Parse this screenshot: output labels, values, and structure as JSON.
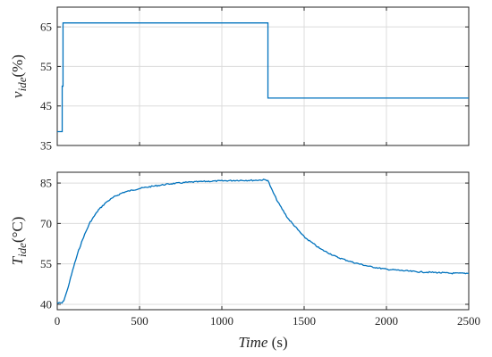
{
  "colors": {
    "series": "#0072BD",
    "axes": "#262626",
    "grid": "#dcdcdc"
  },
  "chart_data": [
    {
      "type": "line",
      "ylabel": {
        "var": "v",
        "sub": "ide",
        "unit": "(%)"
      },
      "xlim": [
        0,
        2500
      ],
      "ylim": [
        35,
        70
      ],
      "yticks": [
        35,
        45,
        55,
        65
      ],
      "xticks": [
        0,
        500,
        1000,
        1500,
        2000,
        2500
      ],
      "show_xtick_labels": false,
      "grid": true,
      "series": [
        {
          "x": [
            0,
            30,
            30,
            35,
            35,
            1280,
            1280,
            2500
          ],
          "y": [
            38.5,
            38.5,
            50,
            50,
            66,
            66,
            47,
            47
          ]
        }
      ]
    },
    {
      "type": "line",
      "ylabel": {
        "var": "T",
        "sub": "ide",
        "unit": "(°C)"
      },
      "xlabel": {
        "var": "Time",
        "unit": " (s)"
      },
      "xlim": [
        0,
        2500
      ],
      "ylim": [
        38,
        89
      ],
      "yticks": [
        40,
        55,
        70,
        85
      ],
      "xticks": [
        0,
        500,
        1000,
        1500,
        2000,
        2500
      ],
      "show_xtick_labels": true,
      "grid": true,
      "series": [
        {
          "x": [
            0,
            30,
            40,
            60,
            80,
            100,
            130,
            160,
            200,
            250,
            300,
            350,
            400,
            500,
            600,
            700,
            800,
            900,
            1000,
            1100,
            1200,
            1260,
            1280,
            1300,
            1340,
            1400,
            1450,
            1500,
            1600,
            1700,
            1800,
            1900,
            2000,
            2100,
            2200,
            2300,
            2400,
            2500
          ],
          "y": [
            40.5,
            40.5,
            41.5,
            45,
            49.5,
            54,
            60,
            65,
            70.5,
            75,
            78,
            80,
            81.5,
            83,
            84,
            84.8,
            85.3,
            85.6,
            85.8,
            86,
            86,
            86.2,
            86,
            83,
            78,
            72,
            68.5,
            65,
            60.5,
            57.5,
            55.5,
            54,
            53,
            52.5,
            52,
            51.8,
            51.5,
            51.5
          ]
        }
      ]
    }
  ]
}
